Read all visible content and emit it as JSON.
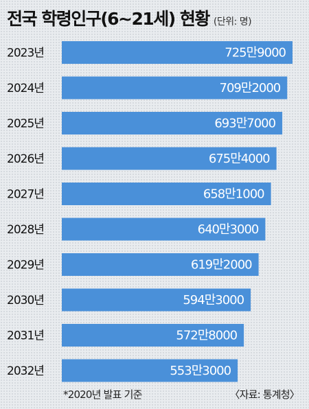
{
  "title": "전국 학령인구(6~21세) 현황",
  "unit": "(단위: 명)",
  "footnote": "*2020년 발표 기준",
  "source": "〈자료: 통계청〉",
  "colors": {
    "bar": "#4a90d9",
    "label_inside": "#ffffff",
    "label_outside": "#111111"
  },
  "chart_data": {
    "type": "bar",
    "orientation": "horizontal",
    "categories": [
      "2023년",
      "2024년",
      "2025년",
      "2026년",
      "2027년",
      "2028년",
      "2029년",
      "2030년",
      "2031년",
      "2032년"
    ],
    "values": [
      7259000,
      7092000,
      6937000,
      6754000,
      6581000,
      6403000,
      6192000,
      5943000,
      5728000,
      5533000
    ],
    "data_labels": [
      "725만9000",
      "709만2000",
      "693만7000",
      "675만4000",
      "658만1000",
      "640만3000",
      "619만2000",
      "594만3000",
      "572만8000",
      "553만3000"
    ]
  }
}
